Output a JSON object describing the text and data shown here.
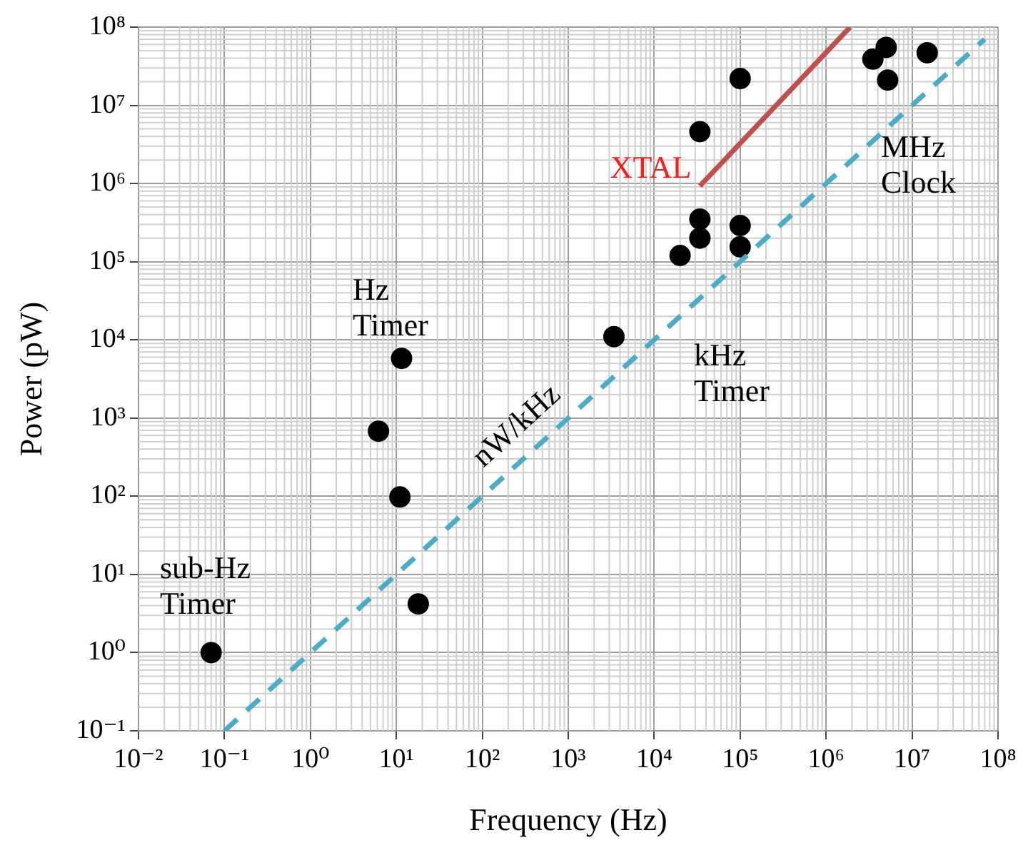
{
  "chart_data": {
    "type": "scatter",
    "xlabel": "Frequency (Hz)",
    "ylabel": "Power (pW)",
    "log": "xy",
    "grid": true,
    "legend": false,
    "marker": "circle",
    "xlim": [
      0.01,
      100000000
    ],
    "ylim": [
      0.1,
      100000000
    ],
    "xticks": [
      {
        "value": 0.01,
        "label": "10⁻²"
      },
      {
        "value": 0.1,
        "label": "10⁻¹"
      },
      {
        "value": 1,
        "label": "10⁰"
      },
      {
        "value": 10,
        "label": "10¹"
      },
      {
        "value": 100,
        "label": "10²"
      },
      {
        "value": 1000,
        "label": "10³"
      },
      {
        "value": 10000,
        "label": "10⁴"
      },
      {
        "value": 100000,
        "label": "10⁵"
      },
      {
        "value": 1000000,
        "label": "10⁶"
      },
      {
        "value": 10000000,
        "label": "10⁷"
      },
      {
        "value": 100000000,
        "label": "10⁸"
      }
    ],
    "yticks": [
      {
        "value": 0.1,
        "label": "10⁻¹"
      },
      {
        "value": 1,
        "label": "10⁰"
      },
      {
        "value": 10,
        "label": "10¹"
      },
      {
        "value": 100,
        "label": "10²"
      },
      {
        "value": 1000,
        "label": "10³"
      },
      {
        "value": 10000,
        "label": "10⁴"
      },
      {
        "value": 100000,
        "label": "10⁵"
      },
      {
        "value": 1000000,
        "label": "10⁶"
      },
      {
        "value": 10000000,
        "label": "10⁷"
      },
      {
        "value": 100000000,
        "label": "10⁸"
      }
    ],
    "series": [
      {
        "type": "line",
        "name": "nW/kHz",
        "color": "#4bacc6",
        "line_style": "dashed",
        "marker": "none",
        "x": [
          0.1,
          70000000
        ],
        "values": [
          0.1,
          70000000
        ]
      },
      {
        "type": "line",
        "name": "XTAL",
        "color": "#c0504d",
        "line_style": "solid",
        "marker": "none",
        "x": [
          34000,
          1900000
        ],
        "values": [
          930000,
          100000000
        ]
      },
      {
        "color": "#000000",
        "x": [
          0.07,
          18,
          11,
          6.2,
          11.5,
          3400,
          20000,
          34000,
          34000,
          100000,
          100000,
          34000,
          100000,
          3500000,
          5000000,
          5200000,
          15000000
        ],
        "values": [
          1.0,
          4.2,
          98,
          680,
          5800,
          11000,
          120000,
          200000,
          350000,
          155000,
          290000,
          4600000,
          22000000,
          39000000,
          55000000,
          21000000,
          47000000
        ]
      }
    ],
    "annotations": [
      "sub-Hz Timer",
      "Hz Timer",
      "kHz Timer",
      "MHz Clock"
    ]
  }
}
